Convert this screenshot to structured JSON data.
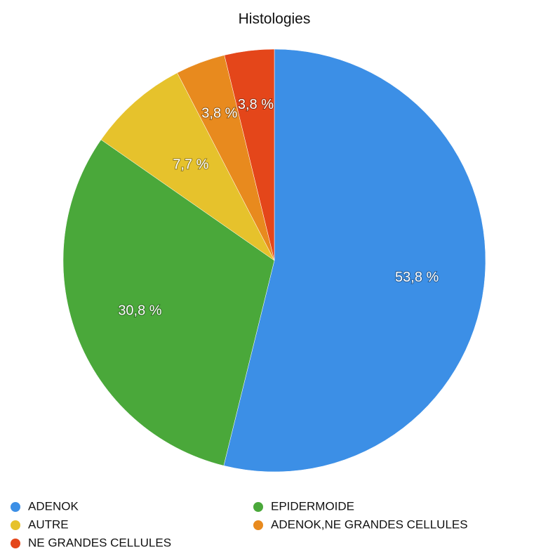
{
  "chart_data": {
    "type": "pie",
    "title": "Histologies",
    "categories": [
      "ADENOK",
      "EPIDERMOIDE",
      "AUTRE",
      "ADENOK,NE GRANDES CELLULES",
      "NE GRANDES CELLULES"
    ],
    "values": [
      53.8,
      30.8,
      7.7,
      3.8,
      3.8
    ],
    "value_labels": [
      "53,8 %",
      "30,8 %",
      "7,7 %",
      "3,8 %",
      "3,8 %"
    ],
    "colors": [
      "#3c8fe6",
      "#4aa83a",
      "#e6c22c",
      "#e88a1e",
      "#e4461a"
    ],
    "legend": "bottom"
  }
}
